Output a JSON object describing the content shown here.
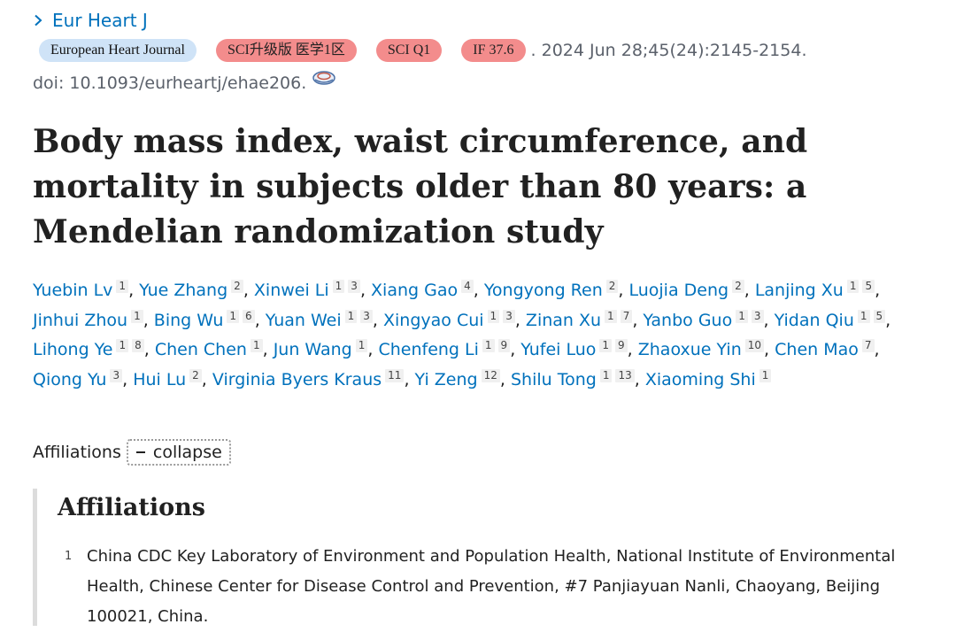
{
  "journal": {
    "short_name": "Eur Heart J",
    "chevron_icon": "chevron-right-icon"
  },
  "badges": {
    "journal_full": "European Heart Journal",
    "sci_level": "SCI升级版 医学1区",
    "sci_q": "SCI Q1",
    "impact_factor": "IF 37.6",
    "colors": {
      "blue": "#cfe3f7",
      "red": "#f38c8c"
    }
  },
  "citation": ". 2024 Jun 28;45(24):2145-2154.",
  "doi": {
    "text": "doi: 10.1093/eurheartj/ehae206.",
    "icon": "doi-link-icon"
  },
  "title": "Body mass index, waist circumference, and mortality in subjects older than 80 years: a Mendelian randomization study",
  "authors": [
    {
      "name": "Yuebin Lv",
      "affs": [
        "1"
      ]
    },
    {
      "name": "Yue Zhang",
      "affs": [
        "2"
      ]
    },
    {
      "name": "Xinwei Li",
      "affs": [
        "1",
        "3"
      ]
    },
    {
      "name": "Xiang Gao",
      "affs": [
        "4"
      ]
    },
    {
      "name": "Yongyong Ren",
      "affs": [
        "2"
      ]
    },
    {
      "name": "Luojia Deng",
      "affs": [
        "2"
      ]
    },
    {
      "name": "Lanjing Xu",
      "affs": [
        "1",
        "5"
      ]
    },
    {
      "name": "Jinhui Zhou",
      "affs": [
        "1"
      ]
    },
    {
      "name": "Bing Wu",
      "affs": [
        "1",
        "6"
      ]
    },
    {
      "name": "Yuan Wei",
      "affs": [
        "1",
        "3"
      ]
    },
    {
      "name": "Xingyao Cui",
      "affs": [
        "1",
        "3"
      ]
    },
    {
      "name": "Zinan Xu",
      "affs": [
        "1",
        "7"
      ]
    },
    {
      "name": "Yanbo Guo",
      "affs": [
        "1",
        "3"
      ]
    },
    {
      "name": "Yidan Qiu",
      "affs": [
        "1",
        "5"
      ]
    },
    {
      "name": "Lihong Ye",
      "affs": [
        "1",
        "8"
      ]
    },
    {
      "name": "Chen Chen",
      "affs": [
        "1"
      ]
    },
    {
      "name": "Jun Wang",
      "affs": [
        "1"
      ]
    },
    {
      "name": "Chenfeng Li",
      "affs": [
        "1",
        "9"
      ]
    },
    {
      "name": "Yufei Luo",
      "affs": [
        "1",
        "9"
      ]
    },
    {
      "name": "Zhaoxue Yin",
      "affs": [
        "10"
      ]
    },
    {
      "name": "Chen Mao",
      "affs": [
        "7"
      ]
    },
    {
      "name": "Qiong Yu",
      "affs": [
        "3"
      ]
    },
    {
      "name": "Hui Lu",
      "affs": [
        "2"
      ]
    },
    {
      "name": "Virginia Byers Kraus",
      "affs": [
        "11"
      ]
    },
    {
      "name": "Yi Zeng",
      "affs": [
        "12"
      ]
    },
    {
      "name": "Shilu Tong",
      "affs": [
        "1",
        "13"
      ]
    },
    {
      "name": "Xiaoming Shi",
      "affs": [
        "1"
      ]
    }
  ],
  "affiliations_toggle": {
    "label": "Affiliations",
    "button": "collapse",
    "button_icon": "minus-icon"
  },
  "affiliations": {
    "heading": "Affiliations",
    "items": [
      {
        "num": "1",
        "text": "China CDC Key Laboratory of Environment and Population Health, National Institute of Environmental Health, Chinese Center for Disease Control and Prevention, #7 Panjiayuan Nanli, Chaoyang, Beijing 100021, China."
      }
    ]
  }
}
